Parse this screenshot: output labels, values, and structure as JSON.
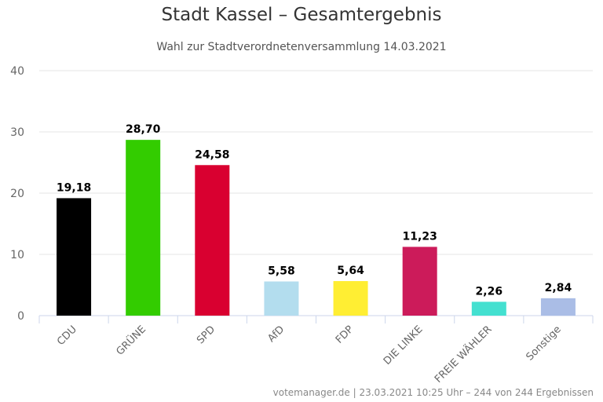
{
  "title": "Stadt Kassel – Gesamtergebnis",
  "subtitle": "Wahl zur Stadtverordnetenversammlung 14.03.2021",
  "credits": "votemanager.de | 23.03.2021 10:25 Uhr – 244 von 244 Ergebnissen",
  "chart_data": {
    "type": "bar",
    "categories": [
      "CDU",
      "GRÜNE",
      "SPD",
      "AfD",
      "FDP",
      "DIE LINKE",
      "FREIE WÄHLER",
      "Sonstige"
    ],
    "values": [
      19.18,
      28.7,
      24.58,
      5.58,
      5.64,
      11.23,
      2.26,
      2.84
    ],
    "data_labels": [
      "19,18",
      "28,70",
      "24,58",
      "5,58",
      "5,64",
      "11,23",
      "2,26",
      "2,84"
    ],
    "colors": [
      "#000000",
      "#33cc00",
      "#d90030",
      "#b3ddee",
      "#ffee33",
      "#cc1b5a",
      "#44e0d0",
      "#aabde6"
    ],
    "yticks": [
      0,
      10,
      20,
      30,
      40
    ],
    "ylim": [
      0,
      40
    ],
    "grid": true,
    "legend": false
  }
}
